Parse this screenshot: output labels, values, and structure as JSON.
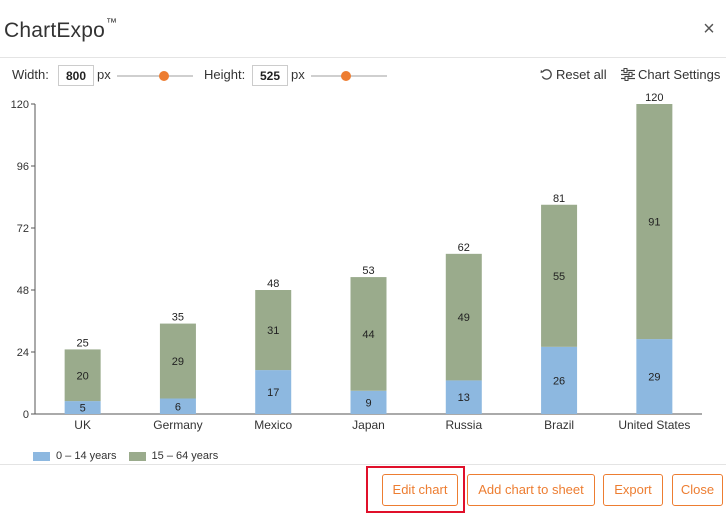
{
  "app": {
    "title": "ChartExpo",
    "trademark": "™",
    "close_glyph": "×"
  },
  "controls": {
    "width_label": "Width:",
    "width_value": "800",
    "width_unit": "px",
    "height_label": "Height:",
    "height_value": "525",
    "height_unit": "px",
    "reset_label": "Reset all",
    "settings_label": "Chart Settings"
  },
  "colors": {
    "series_0_14": "#8db8e0",
    "series_15_64": "#9aab8c",
    "accent": "#ed7d31",
    "highlight": "#e0102a"
  },
  "chart_data": {
    "type": "bar",
    "stacked": true,
    "categories": [
      "UK",
      "Germany",
      "Mexico",
      "Japan",
      "Russia",
      "Brazil",
      "United States"
    ],
    "series": [
      {
        "name": "0 – 14 years",
        "values": [
          5,
          6,
          17,
          9,
          13,
          26,
          29
        ]
      },
      {
        "name": "15 – 64 years",
        "values": [
          20,
          29,
          31,
          44,
          49,
          55,
          91
        ]
      }
    ],
    "totals": [
      25,
      35,
      48,
      53,
      62,
      81,
      120
    ],
    "y_ticks": [
      0,
      24,
      48,
      72,
      96,
      120
    ],
    "ylim": [
      0,
      120
    ],
    "grid": false,
    "legend_position": "bottom-left"
  },
  "legend": {
    "items": [
      {
        "label": "0 – 14 years"
      },
      {
        "label": "15 – 64 years"
      }
    ]
  },
  "footer": {
    "edit_chart": "Edit chart",
    "add_chart": "Add chart to sheet",
    "export": "Export",
    "close": "Close"
  }
}
